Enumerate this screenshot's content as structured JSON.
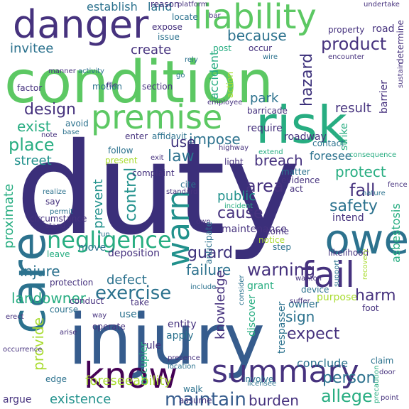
{
  "palette": {
    "navy": "#3b2f7a",
    "indigo": "#46327e",
    "blue": "#365c8d",
    "steel": "#2c728e",
    "teal": "#21918c",
    "sea": "#27ad81",
    "green": "#5cc863",
    "lime": "#aadc32",
    "purple": "#440154"
  },
  "words": [
    {
      "text": "duty",
      "color": "navy"
    },
    {
      "text": "condition",
      "color": "green"
    },
    {
      "text": "injury",
      "color": "blue"
    },
    {
      "text": "risk",
      "color": "sea"
    },
    {
      "text": "care",
      "color": "steel"
    },
    {
      "text": "danger",
      "color": "indigo"
    },
    {
      "text": "liability",
      "color": "green"
    },
    {
      "text": "premise",
      "color": "green"
    },
    {
      "text": "owe",
      "color": "steel"
    },
    {
      "text": "fail",
      "color": "indigo"
    },
    {
      "text": "know",
      "color": "purple"
    },
    {
      "text": "summary",
      "color": "indigo"
    },
    {
      "text": "warn",
      "color": "teal"
    },
    {
      "text": "negligence",
      "color": "sea"
    },
    {
      "text": "exercise",
      "color": "steel"
    },
    {
      "text": "maintain",
      "color": "blue"
    },
    {
      "text": "product",
      "color": "indigo"
    },
    {
      "text": "hazard",
      "color": "navy"
    },
    {
      "text": "establish",
      "color": "steel"
    },
    {
      "text": "land",
      "color": "steel"
    },
    {
      "text": "because",
      "color": "steel"
    },
    {
      "text": "invitee",
      "color": "steel"
    },
    {
      "text": "create",
      "color": "indigo"
    },
    {
      "text": "design",
      "color": "indigo"
    },
    {
      "text": "exist",
      "color": "sea"
    },
    {
      "text": "place",
      "color": "sea"
    },
    {
      "text": "street",
      "color": "teal"
    },
    {
      "text": "proximate",
      "color": "sea"
    },
    {
      "text": "park",
      "color": "steel"
    },
    {
      "text": "result",
      "color": "indigo"
    },
    {
      "text": "protect",
      "color": "sea"
    },
    {
      "text": "breach",
      "color": "indigo"
    },
    {
      "text": "area",
      "color": "indigo"
    },
    {
      "text": "fall",
      "color": "indigo"
    },
    {
      "text": "safety",
      "color": "steel"
    },
    {
      "text": "control",
      "color": "teal"
    },
    {
      "text": "law",
      "color": "steel"
    },
    {
      "text": "impose",
      "color": "steel"
    },
    {
      "text": "use",
      "color": "navy"
    },
    {
      "text": "public",
      "color": "teal"
    },
    {
      "text": "cause",
      "color": "indigo"
    },
    {
      "text": "prevent",
      "color": "teal"
    },
    {
      "text": "guard",
      "color": "navy"
    },
    {
      "text": "failure",
      "color": "steel"
    },
    {
      "text": "warning",
      "color": "indigo"
    },
    {
      "text": "harm",
      "color": "indigo"
    },
    {
      "text": "injure",
      "color": "steel"
    },
    {
      "text": "defect",
      "color": "steel"
    },
    {
      "text": "landowner",
      "color": "sea"
    },
    {
      "text": "foreseeability",
      "color": "lime"
    },
    {
      "text": "existence",
      "color": "teal"
    },
    {
      "text": "burden",
      "color": "indigo"
    },
    {
      "text": "allege",
      "color": "sea"
    },
    {
      "text": "person",
      "color": "steel"
    },
    {
      "text": "expect",
      "color": "indigo"
    },
    {
      "text": "sign",
      "color": "steel"
    },
    {
      "text": "knowledge",
      "color": "indigo"
    },
    {
      "text": "provide",
      "color": "lime"
    },
    {
      "text": "maintenance",
      "color": "indigo"
    },
    {
      "text": "deposition",
      "color": "indigo"
    },
    {
      "text": "roadway",
      "color": "indigo"
    },
    {
      "text": "require",
      "color": "indigo"
    },
    {
      "text": "foresee",
      "color": "steel"
    },
    {
      "text": "barricade",
      "color": "indigo"
    },
    {
      "text": "accident",
      "color": "sea"
    },
    {
      "text": "road",
      "color": "indigo"
    },
    {
      "text": "asbestosis",
      "color": "sea"
    },
    {
      "text": "conclude",
      "color": "steel"
    },
    {
      "text": "intend",
      "color": "indigo"
    },
    {
      "text": "entity",
      "color": "indigo"
    },
    {
      "text": "apply",
      "color": "steel"
    },
    {
      "text": "rule",
      "color": "indigo"
    },
    {
      "text": "occupier",
      "color": "sea"
    },
    {
      "text": "move",
      "color": "steel"
    },
    {
      "text": "leave",
      "color": "sea"
    },
    {
      "text": "anticipate",
      "color": "steel"
    },
    {
      "text": "grant",
      "color": "sea"
    },
    {
      "text": "discover",
      "color": "sea"
    },
    {
      "text": "trespasser",
      "color": "steel"
    },
    {
      "text": "likelihood",
      "color": "indigo"
    },
    {
      "text": "device",
      "color": "steel"
    },
    {
      "text": "purpose",
      "color": "lime"
    },
    {
      "text": "owner",
      "color": "steel"
    },
    {
      "text": "claim",
      "color": "steel"
    },
    {
      "text": "foot",
      "color": "indigo"
    },
    {
      "text": "involve",
      "color": "steel"
    },
    {
      "text": "assume",
      "color": "indigo"
    },
    {
      "text": "argue",
      "color": "indigo"
    },
    {
      "text": "edge",
      "color": "steel"
    },
    {
      "text": "walk",
      "color": "steel"
    },
    {
      "text": "motion",
      "color": "steel"
    },
    {
      "text": "section",
      "color": "indigo"
    },
    {
      "text": "factor",
      "color": "indigo"
    },
    {
      "text": "enter",
      "color": "indigo"
    },
    {
      "text": "affidavit",
      "color": "steel"
    },
    {
      "text": "follow",
      "color": "steel"
    },
    {
      "text": "present",
      "color": "lime"
    },
    {
      "text": "complaint",
      "color": "indigo"
    },
    {
      "text": "strike",
      "color": "sea"
    },
    {
      "text": "barrier",
      "color": "indigo"
    },
    {
      "text": "contact",
      "color": "steel"
    },
    {
      "text": "consequence",
      "color": "sea"
    },
    {
      "text": "light",
      "color": "indigo"
    },
    {
      "text": "matter",
      "color": "steel"
    },
    {
      "text": "evidence",
      "color": "indigo"
    },
    {
      "text": "act",
      "color": "indigo"
    },
    {
      "text": "come",
      "color": "indigo"
    },
    {
      "text": "step",
      "color": "steel"
    },
    {
      "text": "notice",
      "color": "lime"
    },
    {
      "text": "incident",
      "color": "sea"
    },
    {
      "text": "nature",
      "color": "steel"
    },
    {
      "text": "cite",
      "color": "steel"
    },
    {
      "text": "standard",
      "color": "indigo"
    },
    {
      "text": "circumstance",
      "color": "indigo"
    },
    {
      "text": "protection",
      "color": "indigo"
    },
    {
      "text": "conduct",
      "color": "indigo"
    },
    {
      "text": "course",
      "color": "steel"
    },
    {
      "text": "operate",
      "color": "indigo"
    },
    {
      "text": "user",
      "color": "steel"
    },
    {
      "text": "take",
      "color": "indigo"
    },
    {
      "text": "occurrence",
      "color": "indigo"
    },
    {
      "text": "location",
      "color": "steel"
    },
    {
      "text": "presence",
      "color": "indigo"
    },
    {
      "text": "licensee",
      "color": "steel"
    },
    {
      "text": "door",
      "color": "indigo"
    },
    {
      "text": "precaution",
      "color": "sea"
    },
    {
      "text": "reason",
      "color": "indigo"
    },
    {
      "text": "platform",
      "color": "indigo"
    },
    {
      "text": "bar",
      "color": "indigo"
    },
    {
      "text": "undertake",
      "color": "indigo"
    },
    {
      "text": "locate",
      "color": "steel"
    },
    {
      "text": "determine",
      "color": "indigo"
    },
    {
      "text": "expose",
      "color": "indigo"
    },
    {
      "text": "issue",
      "color": "steel"
    },
    {
      "text": "post",
      "color": "sea"
    },
    {
      "text": "occur",
      "color": "indigo"
    },
    {
      "text": "wire",
      "color": "steel"
    },
    {
      "text": "encounter",
      "color": "indigo"
    },
    {
      "text": "property",
      "color": "indigo"
    },
    {
      "text": "activity",
      "color": "steel"
    },
    {
      "text": "rely",
      "color": "steel"
    },
    {
      "text": "manner",
      "color": "indigo"
    },
    {
      "text": "action",
      "color": "lime"
    },
    {
      "text": "go",
      "color": "steel"
    },
    {
      "text": "file",
      "color": "indigo"
    },
    {
      "text": "employee",
      "color": "indigo"
    },
    {
      "text": "avoid",
      "color": "steel"
    },
    {
      "text": "note",
      "color": "indigo"
    },
    {
      "text": "base",
      "color": "steel"
    },
    {
      "text": "exit",
      "color": "indigo"
    },
    {
      "text": "highway",
      "color": "indigo"
    },
    {
      "text": "extend",
      "color": "sea"
    },
    {
      "text": "fence",
      "color": "indigo"
    },
    {
      "text": "say",
      "color": "indigo"
    },
    {
      "text": "realize",
      "color": "steel"
    },
    {
      "text": "permit",
      "color": "steel"
    },
    {
      "text": "stand",
      "color": "indigo"
    },
    {
      "text": "run",
      "color": "steel"
    },
    {
      "text": "own",
      "color": "indigo"
    },
    {
      "text": "include",
      "color": "steel"
    },
    {
      "text": "wanton",
      "color": "indigo"
    },
    {
      "text": "suffer",
      "color": "indigo"
    },
    {
      "text": "erect",
      "color": "indigo"
    },
    {
      "text": "arise",
      "color": "indigo"
    },
    {
      "text": "recovery",
      "color": "lime"
    },
    {
      "text": "sustain",
      "color": "indigo"
    },
    {
      "text": "support",
      "color": "steel"
    },
    {
      "text": "consider",
      "color": "steel"
    },
    {
      "text": "way",
      "color": "indigo"
    },
    {
      "text": "point",
      "color": "indigo"
    }
  ]
}
